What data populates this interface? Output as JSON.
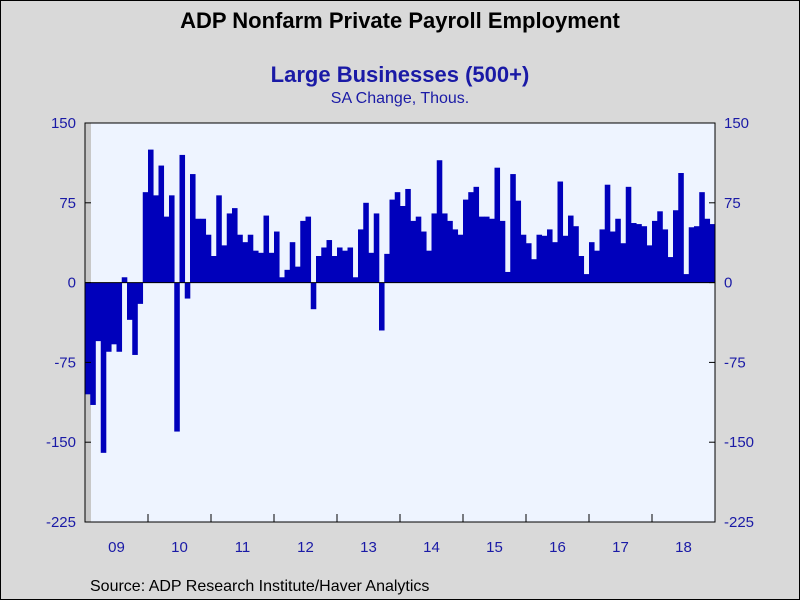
{
  "chart_data": {
    "type": "bar",
    "title": "ADP Nonfarm Private Payroll Employment",
    "subtitle": "Large Businesses (500+)",
    "unit": "SA Change, Thous.",
    "source": "Source:  ADP Research Institute/Haver Analytics",
    "ylim": [
      -225,
      150
    ],
    "yticks": [
      150,
      75,
      0,
      -75,
      -150,
      -225
    ],
    "ytick_labels": [
      "150",
      "75",
      "0",
      "-75",
      "-150",
      "-225"
    ],
    "x_year_labels": [
      "09",
      "10",
      "11",
      "12",
      "13",
      "14",
      "15",
      "16",
      "17",
      "18"
    ],
    "x_start": "2009-01",
    "grid": false,
    "bar_color": "#0000bb",
    "plot_bg": "#eef4ff",
    "values": [
      -105,
      -115,
      -55,
      -160,
      -65,
      -58,
      -65,
      5,
      -35,
      -68,
      -20,
      85,
      125,
      82,
      110,
      62,
      82,
      -140,
      120,
      -15,
      102,
      60,
      60,
      45,
      25,
      82,
      35,
      65,
      70,
      45,
      38,
      45,
      30,
      28,
      63,
      28,
      48,
      5,
      12,
      38,
      15,
      58,
      62,
      -25,
      25,
      33,
      40,
      25,
      33,
      30,
      33,
      5,
      50,
      75,
      28,
      65,
      -45,
      27,
      78,
      85,
      72,
      88,
      58,
      62,
      48,
      30,
      65,
      115,
      65,
      58,
      50,
      45,
      78,
      85,
      90,
      62,
      62,
      60,
      108,
      58,
      10,
      102,
      77,
      45,
      37,
      22,
      45,
      44,
      50,
      38,
      95,
      44,
      63,
      53,
      25,
      8,
      38,
      30,
      50,
      92,
      48,
      60,
      37,
      90,
      56,
      55,
      53,
      35,
      58,
      67,
      50,
      24,
      68,
      103,
      8,
      52,
      53,
      85,
      60,
      55
    ]
  }
}
